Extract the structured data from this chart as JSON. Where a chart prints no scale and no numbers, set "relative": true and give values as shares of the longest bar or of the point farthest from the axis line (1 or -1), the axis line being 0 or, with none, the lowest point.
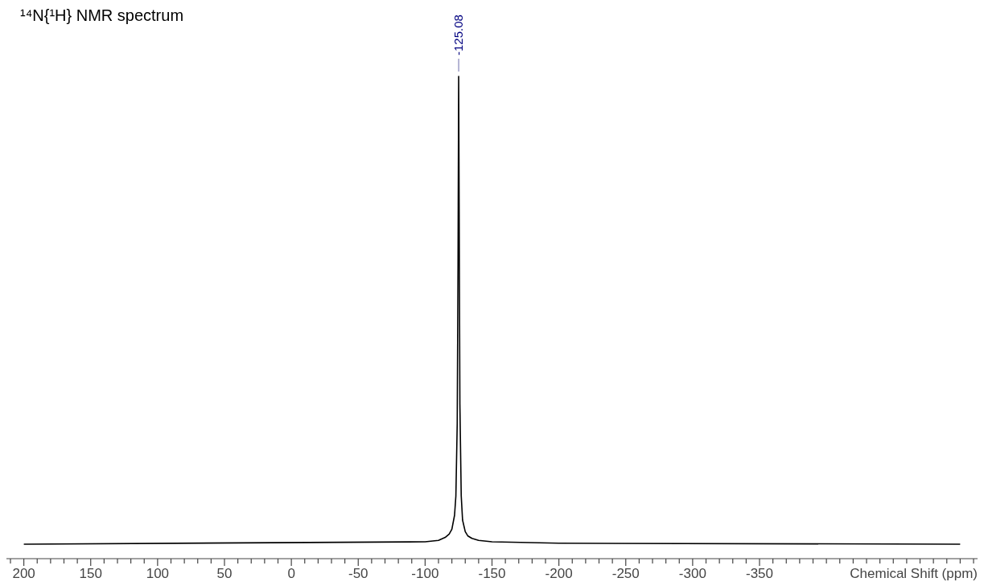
{
  "chart_data": {
    "type": "line",
    "title": "¹⁴N{¹H} NMR spectrum",
    "xlabel": "Chemical Shift (ppm)",
    "relative": true,
    "tick_labels": "x",
    "line_style": "solid",
    "xlim": [
      213,
      -513
    ],
    "xticks": [
      {
        "value": 210,
        "label": null
      },
      200,
      {
        "value": 190,
        "label": null
      },
      {
        "value": 180,
        "label": null
      },
      {
        "value": 170,
        "label": null
      },
      {
        "value": 160,
        "label": null
      },
      150,
      {
        "value": 140,
        "label": null
      },
      {
        "value": 130,
        "label": null
      },
      {
        "value": 120,
        "label": null
      },
      {
        "value": 110,
        "label": null
      },
      100,
      {
        "value": 90,
        "label": null
      },
      {
        "value": 80,
        "label": null
      },
      {
        "value": 70,
        "label": null
      },
      {
        "value": 60,
        "label": null
      },
      50,
      {
        "value": 40,
        "label": null
      },
      {
        "value": 30,
        "label": null
      },
      {
        "value": 20,
        "label": null
      },
      {
        "value": 10,
        "label": null
      },
      0,
      {
        "value": -10,
        "label": null
      },
      {
        "value": -20,
        "label": null
      },
      {
        "value": -30,
        "label": null
      },
      {
        "value": -40,
        "label": null
      },
      -50,
      {
        "value": -60,
        "label": null
      },
      {
        "value": -70,
        "label": null
      },
      {
        "value": -80,
        "label": null
      },
      {
        "value": -90,
        "label": null
      },
      -100,
      {
        "value": -110,
        "label": null
      },
      {
        "value": -120,
        "label": null
      },
      {
        "value": -130,
        "label": null
      },
      {
        "value": -140,
        "label": null
      },
      -150,
      {
        "value": -160,
        "label": null
      },
      {
        "value": -170,
        "label": null
      },
      {
        "value": -180,
        "label": null
      },
      {
        "value": -190,
        "label": null
      },
      -200,
      {
        "value": -210,
        "label": null
      },
      {
        "value": -220,
        "label": null
      },
      {
        "value": -230,
        "label": null
      },
      {
        "value": -240,
        "label": null
      },
      -250,
      {
        "value": -260,
        "label": null
      },
      {
        "value": -270,
        "label": null
      },
      {
        "value": -280,
        "label": null
      },
      {
        "value": -290,
        "label": null
      },
      -300,
      {
        "value": -310,
        "label": null
      },
      {
        "value": -320,
        "label": null
      },
      {
        "value": -330,
        "label": null
      },
      {
        "value": -340,
        "label": null
      },
      -350,
      {
        "value": -360,
        "label": null
      },
      {
        "value": -370,
        "label": null
      },
      {
        "value": -380,
        "label": null
      },
      {
        "value": -390,
        "label": null
      },
      {
        "value": -400,
        "label": null
      },
      {
        "value": -410,
        "label": null
      },
      {
        "value": -420,
        "label": null
      },
      {
        "value": -430,
        "label": null
      },
      {
        "value": -440,
        "label": null
      },
      {
        "value": -450,
        "label": null
      },
      {
        "value": -460,
        "label": null
      },
      {
        "value": -470,
        "label": null
      },
      {
        "value": -480,
        "label": null
      },
      {
        "value": -490,
        "label": null
      },
      {
        "value": -500,
        "label": null
      },
      {
        "value": -510,
        "label": null
      }
    ],
    "annotations": [
      {
        "text": "-125.08",
        "x": -125.08,
        "y": 1
      }
    ],
    "series": [
      {
        "color": "#000000",
        "x": [
          200,
          -100,
          -110,
          -115,
          -118,
          -120,
          -122,
          -123,
          -124,
          -124.6,
          -125.08,
          -125.6,
          -126,
          -127,
          -128,
          -130,
          -132,
          -135,
          -140,
          -150,
          -200,
          -500
        ],
        "values": [
          0.03,
          0.035,
          0.038,
          0.044,
          0.051,
          0.061,
          0.09,
          0.13,
          0.28,
          0.61,
          1,
          0.61,
          0.32,
          0.13,
          0.08,
          0.056,
          0.047,
          0.042,
          0.038,
          0.035,
          0.032,
          0.03
        ]
      }
    ]
  }
}
